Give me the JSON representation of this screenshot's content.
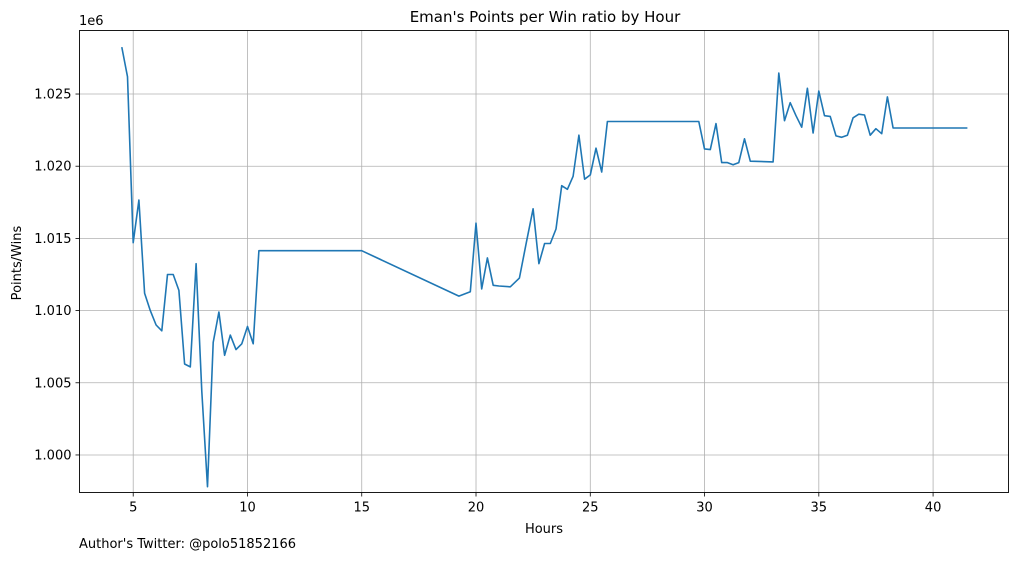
{
  "chart_data": {
    "type": "line",
    "title": "Eman's Points per Win ratio by Hour",
    "xlabel": "Hours",
    "ylabel": "Points/Wins",
    "y_offset_text": "1e6",
    "xlim": [
      2.65,
      43.3
    ],
    "ylim": [
      997400,
      1029400
    ],
    "x_ticks": [
      5,
      10,
      15,
      20,
      25,
      30,
      35,
      40
    ],
    "x_tick_labels": [
      "5",
      "10",
      "15",
      "20",
      "25",
      "30",
      "35",
      "40"
    ],
    "y_ticks": [
      1000000,
      1005000,
      1010000,
      1015000,
      1020000,
      1025000
    ],
    "y_tick_labels": [
      "1.000",
      "1.005",
      "1.010",
      "1.015",
      "1.020",
      "1.025"
    ],
    "grid": true,
    "line_color": "#1f77b4",
    "series": [
      {
        "x": [
          4.5,
          4.75,
          5.0,
          5.25,
          5.5,
          5.75,
          6.0,
          6.25,
          6.5,
          6.75,
          7.0,
          7.25,
          7.5,
          7.75,
          8.0,
          8.25,
          8.5,
          8.75,
          9.0,
          9.25,
          9.5,
          9.75,
          10.0,
          10.25,
          10.5,
          15.0,
          19.25,
          19.75,
          20.0,
          20.25,
          20.5,
          20.75,
          21.0,
          21.5,
          21.9,
          22.2,
          22.5,
          22.75,
          23.0,
          23.25,
          23.5,
          23.75,
          24.0,
          24.25,
          24.5,
          24.75,
          25.0,
          25.25,
          25.5,
          25.75,
          29.75,
          30.0,
          30.25,
          30.5,
          30.75,
          31.0,
          31.25,
          31.5,
          31.75,
          32.0,
          33.0,
          33.25,
          33.5,
          33.75,
          34.0,
          34.25,
          34.5,
          34.75,
          35.0,
          35.25,
          35.5,
          35.75,
          36.0,
          36.25,
          36.5,
          36.75,
          37.0,
          37.25,
          37.5,
          37.75,
          38.0,
          38.25,
          41.5
        ],
        "y": [
          1028250,
          1026200,
          1014700,
          1017650,
          1011200,
          1010000,
          1009000,
          1008600,
          1012500,
          1012500,
          1011400,
          1006300,
          1006100,
          1013250,
          1004400,
          997800,
          1007800,
          1009900,
          1006900,
          1008300,
          1007300,
          1007700,
          1008900,
          1007700,
          1014150,
          1014150,
          1011000,
          1011300,
          1016050,
          1011500,
          1013650,
          1011750,
          1011700,
          1011650,
          1012250,
          1014700,
          1017050,
          1013250,
          1014650,
          1014650,
          1015650,
          1018650,
          1018400,
          1019300,
          1022150,
          1019100,
          1019400,
          1021250,
          1019600,
          1023100,
          1023100,
          1021200,
          1021150,
          1022950,
          1020250,
          1020250,
          1020100,
          1020250,
          1021900,
          1020350,
          1020300,
          1026450,
          1023150,
          1024400,
          1023500,
          1022700,
          1025400,
          1022300,
          1025200,
          1023500,
          1023450,
          1022100,
          1022000,
          1022150,
          1023350,
          1023600,
          1023550,
          1022150,
          1022600,
          1022250,
          1024800,
          1022650,
          1022650
        ]
      }
    ]
  },
  "footer_text": "Author's Twitter: @polo51852166"
}
